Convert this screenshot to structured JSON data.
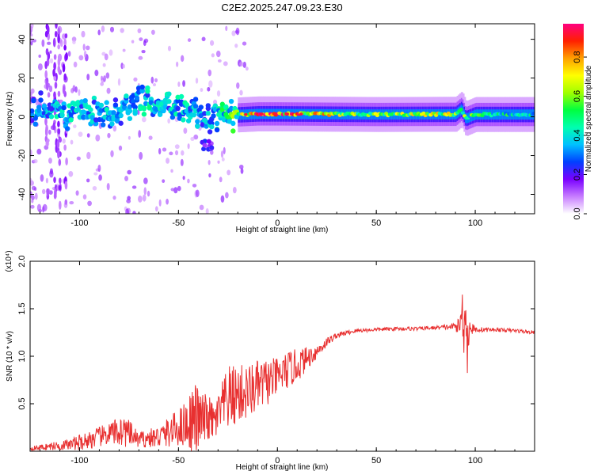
{
  "figure_title": "C2E2.2025.247.09.23.E30",
  "colorbar": {
    "label": "Normalized spectral amplitude",
    "ticks": [
      "0.0",
      "0.2",
      "0.4",
      "0.6",
      "0.8"
    ],
    "tick_values": [
      0.0,
      0.2,
      0.4,
      0.6,
      0.8
    ],
    "range": [
      0,
      0.97
    ],
    "colors": [
      "#ffffff",
      "#c77dff",
      "#7a00ff",
      "#0040ff",
      "#00c0ff",
      "#00ffb0",
      "#00ff40",
      "#a0ff00",
      "#ffff00",
      "#ffa000",
      "#ff2000",
      "#ff0080"
    ]
  },
  "chart_data": [
    {
      "type": "heatmap",
      "title": "C2E2.2025.247.09.23.E30",
      "xlabel": "Height of straight line (km)",
      "ylabel": "Frequency (Hz)",
      "xlim": [
        -125,
        130
      ],
      "ylim": [
        -50,
        48
      ],
      "xticks": [
        -100,
        -50,
        0,
        50,
        100
      ],
      "xtick_labels": [
        "-100",
        "-50",
        "0",
        "50",
        "100"
      ],
      "yticks": [
        -40,
        -20,
        0,
        20,
        40
      ],
      "ytick_labels": [
        "-40",
        "-20",
        "0",
        "20",
        "40"
      ],
      "ridge": {
        "description": "dominant frequency band (center in Hz) vs height",
        "x": [
          -125,
          -110,
          -100,
          -90,
          -80,
          -70,
          -60,
          -50,
          -45,
          -40,
          -35,
          -30,
          -20,
          -10,
          0,
          50,
          90,
          93,
          95,
          100,
          130
        ],
        "center_hz": [
          5,
          3,
          2,
          3,
          4,
          9,
          7,
          5,
          3,
          1,
          -1,
          0,
          1,
          1.5,
          1.5,
          1.2,
          1.3,
          4,
          -1,
          1.2,
          1.2
        ],
        "peak_amplitude": [
          0.35,
          0.4,
          0.4,
          0.4,
          0.35,
          0.45,
          0.4,
          0.4,
          0.4,
          0.35,
          0.4,
          0.45,
          0.6,
          0.9,
          0.9,
          0.65,
          0.7,
          0.55,
          0.6,
          0.55,
          0.45
        ]
      }
    },
    {
      "type": "line",
      "xlabel": "Height of straight line (km)",
      "ylabel": "SNR (10 * v/v)",
      "multiplier_label": "(x10⁴)",
      "color": "#e83030",
      "xlim": [
        -125,
        130
      ],
      "ylim": [
        0,
        2.0
      ],
      "xticks": [
        -100,
        -50,
        0,
        50,
        100
      ],
      "xtick_labels": [
        "-100",
        "-50",
        "0",
        "50",
        "100"
      ],
      "yticks": [
        0.5,
        1.0,
        1.5,
        2.0
      ],
      "ytick_labels": [
        "0.5",
        "1.0",
        "1.5",
        "2.0"
      ],
      "series": [
        {
          "name": "SNR",
          "x": [
            -125,
            -115,
            -105,
            -95,
            -85,
            -78,
            -70,
            -60,
            -50,
            -45,
            -42,
            -38,
            -35,
            -32,
            -28,
            -25,
            -20,
            -15,
            -10,
            -5,
            0,
            5,
            10,
            15,
            20,
            25,
            30,
            40,
            50,
            60,
            70,
            80,
            88,
            92,
            94,
            95,
            96,
            97,
            100,
            110,
            120,
            130
          ],
          "base": [
            0.03,
            0.05,
            0.07,
            0.12,
            0.18,
            0.22,
            0.12,
            0.15,
            0.25,
            0.3,
            0.35,
            0.32,
            0.35,
            0.3,
            0.45,
            0.55,
            0.6,
            0.62,
            0.68,
            0.73,
            0.78,
            0.85,
            0.9,
            0.98,
            1.05,
            1.15,
            1.22,
            1.27,
            1.28,
            1.29,
            1.29,
            1.3,
            1.31,
            1.32,
            1.45,
            1.6,
            1.1,
            1.3,
            1.28,
            1.28,
            1.27,
            1.25
          ],
          "noise": [
            0.02,
            0.04,
            0.06,
            0.1,
            0.12,
            0.18,
            0.08,
            0.12,
            0.2,
            0.28,
            0.4,
            0.3,
            0.25,
            0.2,
            0.28,
            0.35,
            0.32,
            0.3,
            0.28,
            0.25,
            0.2,
            0.2,
            0.18,
            0.12,
            0.08,
            0.05,
            0.03,
            0.02,
            0.02,
            0.02,
            0.02,
            0.02,
            0.03,
            0.08,
            0.5,
            0.45,
            0.35,
            0.1,
            0.03,
            0.02,
            0.02,
            0.02
          ]
        }
      ]
    }
  ]
}
